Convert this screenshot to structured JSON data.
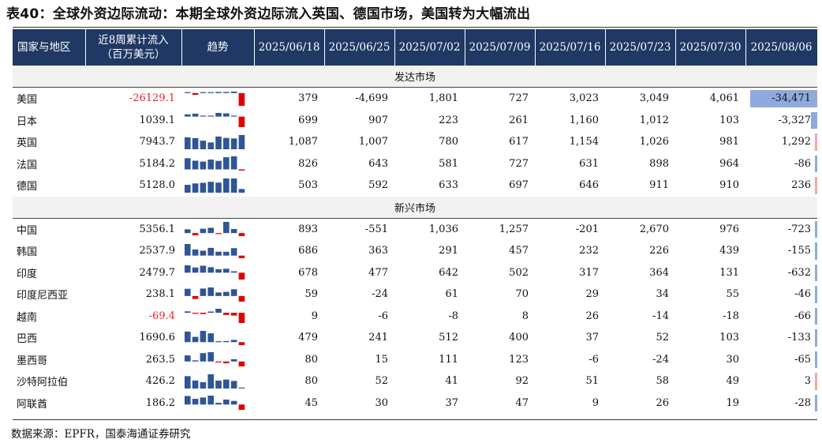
{
  "title": "表40：全球外资边际流动：本期全球外资边际流入英国、德国市场，美国转为大幅流出",
  "header": {
    "country": "国家与地区",
    "inflow_line1": "近8周累计流入",
    "inflow_line2": "（百万美元）",
    "trend": "趋势",
    "dates": [
      "2025/06/18",
      "2025/06/25",
      "2025/07/02",
      "2025/07/09",
      "2025/07/16",
      "2025/07/23",
      "2025/07/30",
      "2025/08/06"
    ]
  },
  "colors": {
    "header_bg": "#1f3864",
    "pos_bar": "#2f5597",
    "neg_bar": "#e00000",
    "neg_text": "#e8232b",
    "pos_fill": "#8faadc",
    "neg_fill": "#f4a6a6"
  },
  "sections": [
    {
      "label": "发达市场",
      "rows": [
        {
          "name": "美国",
          "total": "-26129.1",
          "total_neg": true,
          "weekly": [
            379,
            -4699,
            1801,
            727,
            3023,
            3049,
            4061,
            -34471
          ],
          "labels": [
            "379",
            "-4,699",
            "1,801",
            "727",
            "3,023",
            "3,049",
            "4,061",
            "-34,471"
          ]
        },
        {
          "name": "日本",
          "total": "1039.1",
          "total_neg": false,
          "weekly": [
            699,
            907,
            223,
            261,
            1160,
            1012,
            103,
            -3327
          ],
          "labels": [
            "699",
            "907",
            "223",
            "261",
            "1,160",
            "1,012",
            "103",
            "-3,327"
          ]
        },
        {
          "name": "英国",
          "total": "7943.7",
          "total_neg": false,
          "weekly": [
            1087,
            1007,
            780,
            617,
            1154,
            1026,
            981,
            1292
          ],
          "labels": [
            "1,087",
            "1,007",
            "780",
            "617",
            "1,154",
            "1,026",
            "981",
            "1,292"
          ]
        },
        {
          "name": "法国",
          "total": "5184.2",
          "total_neg": false,
          "weekly": [
            826,
            643,
            581,
            727,
            631,
            898,
            964,
            -86
          ],
          "labels": [
            "826",
            "643",
            "581",
            "727",
            "631",
            "898",
            "964",
            "-86"
          ]
        },
        {
          "name": "德国",
          "total": "5128.0",
          "total_neg": false,
          "weekly": [
            503,
            592,
            633,
            697,
            646,
            911,
            910,
            236
          ],
          "labels": [
            "503",
            "592",
            "633",
            "697",
            "646",
            "911",
            "910",
            "236"
          ]
        }
      ]
    },
    {
      "label": "新兴市场",
      "rows": [
        {
          "name": "中国",
          "total": "5356.1",
          "total_neg": false,
          "weekly": [
            893,
            -551,
            1036,
            1257,
            -201,
            2670,
            976,
            -723
          ],
          "labels": [
            "893",
            "-551",
            "1,036",
            "1,257",
            "-201",
            "2,670",
            "976",
            "-723"
          ]
        },
        {
          "name": "韩国",
          "total": "2537.9",
          "total_neg": false,
          "weekly": [
            686,
            363,
            291,
            457,
            232,
            226,
            439,
            -155
          ],
          "labels": [
            "686",
            "363",
            "291",
            "457",
            "232",
            "226",
            "439",
            "-155"
          ]
        },
        {
          "name": "印度",
          "total": "2479.7",
          "total_neg": false,
          "weekly": [
            678,
            477,
            642,
            502,
            317,
            364,
            131,
            -632
          ],
          "labels": [
            "678",
            "477",
            "642",
            "502",
            "317",
            "364",
            "131",
            "-632"
          ]
        },
        {
          "name": "印度尼西亚",
          "total": "238.1",
          "total_neg": false,
          "weekly": [
            59,
            -24,
            61,
            70,
            29,
            34,
            55,
            -46
          ],
          "labels": [
            "59",
            "-24",
            "61",
            "70",
            "29",
            "34",
            "55",
            "-46"
          ]
        },
        {
          "name": "越南",
          "total": "-69.4",
          "total_neg": true,
          "weekly": [
            9,
            -6,
            -8,
            8,
            26,
            -14,
            -18,
            -66
          ],
          "labels": [
            "9",
            "-6",
            "-8",
            "8",
            "26",
            "-14",
            "-18",
            "-66"
          ]
        },
        {
          "name": "巴西",
          "total": "1690.6",
          "total_neg": false,
          "weekly": [
            479,
            241,
            512,
            400,
            37,
            52,
            103,
            -133
          ],
          "labels": [
            "479",
            "241",
            "512",
            "400",
            "37",
            "52",
            "103",
            "-133"
          ]
        },
        {
          "name": "墨西哥",
          "total": "263.5",
          "total_neg": false,
          "weekly": [
            80,
            15,
            111,
            123,
            -6,
            -24,
            30,
            -65
          ],
          "labels": [
            "80",
            "15",
            "111",
            "123",
            "-6",
            "-24",
            "30",
            "-65"
          ]
        },
        {
          "name": "沙特阿拉伯",
          "total": "426.2",
          "total_neg": false,
          "weekly": [
            80,
            52,
            41,
            92,
            51,
            58,
            49,
            3
          ],
          "labels": [
            "80",
            "52",
            "41",
            "92",
            "51",
            "58",
            "49",
            "3"
          ]
        },
        {
          "name": "阿联酋",
          "total": "186.2",
          "total_neg": false,
          "weekly": [
            45,
            30,
            37,
            47,
            9,
            26,
            19,
            -28
          ],
          "labels": [
            "45",
            "30",
            "37",
            "47",
            "9",
            "26",
            "19",
            "-28"
          ]
        }
      ]
    }
  ],
  "source": "数据来源：EPFR，国泰海通证券研究"
}
